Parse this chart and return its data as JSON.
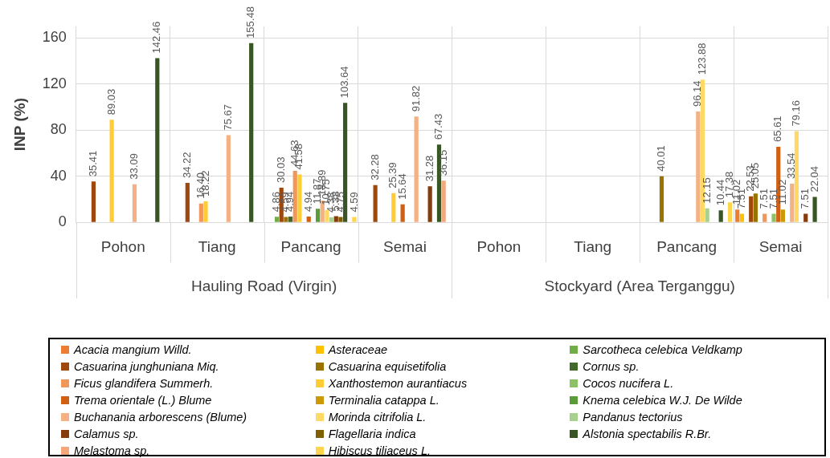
{
  "chart_data": {
    "type": "bar",
    "ylabel": "INP (%)",
    "categories": [
      "Pohon",
      "Tiang",
      "Pancang",
      "Semai",
      "Pohon",
      "Tiang",
      "Pancang",
      "Semai"
    ],
    "annotations": [
      "Hauling Road (Virgin)",
      "Stockyard (Area Terganggu)"
    ],
    "ylim": [
      0,
      170
    ],
    "yticks": [
      0,
      40,
      80,
      120,
      160
    ],
    "grid": true,
    "legend": "bottom",
    "series": [
      {
        "name": "Acacia mangium Willd.",
        "color": "#ed7d31",
        "values": [
          null,
          null,
          null,
          null,
          null,
          null,
          null,
          11.02
        ],
        "value_labels": [
          null,
          null,
          null,
          null,
          null,
          null,
          null,
          "11.02"
        ]
      },
      {
        "name": "Asteraceae",
        "color": "#ffc000",
        "values": [
          null,
          null,
          null,
          null,
          null,
          null,
          null,
          7.51
        ],
        "value_labels": [
          null,
          null,
          null,
          null,
          null,
          null,
          null,
          "7.51"
        ]
      },
      {
        "name": "Sarcotheca celebica Veldkamp",
        "color": "#70ad47",
        "values": [
          null,
          null,
          4.86,
          null,
          null,
          null,
          null,
          null
        ],
        "value_labels": [
          null,
          null,
          "4.86",
          null,
          null,
          null,
          null,
          null
        ]
      },
      {
        "name": "Casuarina junghuniana Miq.",
        "color": "#9e480e",
        "values": [
          35.41,
          34.22,
          30.03,
          32.28,
          null,
          null,
          null,
          22.53
        ],
        "value_labels": [
          "35.41",
          "34.22",
          "30.03",
          "32.28",
          null,
          null,
          null,
          "22.53"
        ]
      },
      {
        "name": "Casuarina equisetifolia",
        "color": "#997300",
        "values": [
          null,
          null,
          4.59,
          null,
          null,
          null,
          40.01,
          25.05
        ],
        "value_labels": [
          null,
          null,
          "4.59",
          null,
          null,
          null,
          "40.01",
          "25.05"
        ]
      },
      {
        "name": "Cornus sp.",
        "color": "#43682b",
        "values": [
          null,
          null,
          4.94,
          null,
          null,
          null,
          null,
          null
        ],
        "value_labels": [
          null,
          null,
          "4.94",
          null,
          null,
          null,
          null,
          null
        ]
      },
      {
        "name": "Ficus glandifera Summerh.",
        "color": "#f1975a",
        "values": [
          null,
          16.4,
          44.63,
          null,
          null,
          null,
          null,
          7.51
        ],
        "value_labels": [
          null,
          "16.40",
          "44.63",
          null,
          null,
          null,
          null,
          "7.51"
        ]
      },
      {
        "name": "Xanthostemon aurantiacus",
        "color": "#ffcd33",
        "values": [
          89.03,
          18.22,
          41.58,
          25.39,
          null,
          null,
          null,
          null
        ],
        "value_labels": [
          "89.03",
          "18.22",
          "41.58",
          "25.39",
          null,
          null,
          null,
          null
        ]
      },
      {
        "name": "Cocos nucifera L.",
        "color": "#8cc168",
        "values": [
          null,
          null,
          null,
          null,
          null,
          null,
          null,
          7.51
        ],
        "value_labels": [
          null,
          null,
          null,
          null,
          null,
          null,
          null,
          "7.51"
        ]
      },
      {
        "name": "Trema orientale (L.) Blume",
        "color": "#d26012",
        "values": [
          null,
          null,
          4.94,
          15.64,
          null,
          null,
          null,
          65.61
        ],
        "value_labels": [
          null,
          null,
          "4.94",
          "15.64",
          null,
          null,
          null,
          "65.61"
        ]
      },
      {
        "name": "Terminalia catappa L.",
        "color": "#cc9a06",
        "values": [
          null,
          null,
          null,
          null,
          null,
          null,
          null,
          11.02
        ],
        "value_labels": [
          null,
          null,
          null,
          null,
          null,
          null,
          null,
          "11.02"
        ]
      },
      {
        "name": "Knema celebica W.J. De Wilde",
        "color": "#5b9b3a",
        "values": [
          null,
          null,
          11.87,
          null,
          null,
          null,
          null,
          null
        ],
        "value_labels": [
          null,
          null,
          "11.87",
          null,
          null,
          null,
          null,
          null
        ]
      },
      {
        "name": "Buchanania arborescens (Blume)",
        "color": "#f4b183",
        "values": [
          33.09,
          75.67,
          18.89,
          91.82,
          null,
          null,
          96.14,
          33.54
        ],
        "value_labels": [
          "33.09",
          "75.67",
          "18.89",
          "91.82",
          null,
          null,
          "96.14",
          "33.54"
        ]
      },
      {
        "name": "Morinda citrifolia L.",
        "color": "#ffd966",
        "values": [
          null,
          null,
          10.75,
          null,
          null,
          null,
          123.88,
          79.16
        ],
        "value_labels": [
          null,
          null,
          "10.75",
          null,
          null,
          null,
          "123.88",
          "79.16"
        ]
      },
      {
        "name": "Pandanus tectorius",
        "color": "#a9d18e",
        "values": [
          null,
          null,
          4.38,
          null,
          null,
          null,
          12.15,
          null
        ],
        "value_labels": [
          null,
          null,
          "4.38",
          null,
          null,
          null,
          "12.15",
          null
        ]
      },
      {
        "name": "Calamus sp.",
        "color": "#843c0c",
        "values": [
          null,
          null,
          5.38,
          31.28,
          null,
          null,
          null,
          7.51
        ],
        "value_labels": [
          null,
          null,
          "5.38",
          "31.28",
          null,
          null,
          null,
          "7.51"
        ]
      },
      {
        "name": "Flagellaria indica",
        "color": "#7f6000",
        "values": [
          null,
          null,
          4.75,
          null,
          null,
          null,
          null,
          null
        ],
        "value_labels": [
          null,
          null,
          "4.75",
          null,
          null,
          null,
          null,
          null
        ]
      },
      {
        "name": "Alstonia spectabilis R.Br.",
        "color": "#375623",
        "values": [
          142.46,
          155.48,
          103.64,
          67.43,
          null,
          null,
          10.44,
          22.04
        ],
        "value_labels": [
          "142.46",
          "155.48",
          "103.64",
          "67.43",
          null,
          null,
          "10.44",
          "22.04"
        ]
      },
      {
        "name": "Melastoma sp.",
        "color": "#f4a77a",
        "values": [
          null,
          null,
          null,
          36.15,
          null,
          null,
          null,
          null
        ],
        "value_labels": [
          null,
          null,
          null,
          "36.15",
          null,
          null,
          null,
          null
        ]
      },
      {
        "name": "Hibiscus tiliaceus L.",
        "color": "#ffd54f",
        "values": [
          null,
          null,
          4.59,
          null,
          null,
          null,
          17.38,
          null
        ],
        "value_labels": [
          null,
          null,
          "4.59",
          null,
          null,
          null,
          "17.38",
          null
        ]
      }
    ]
  }
}
